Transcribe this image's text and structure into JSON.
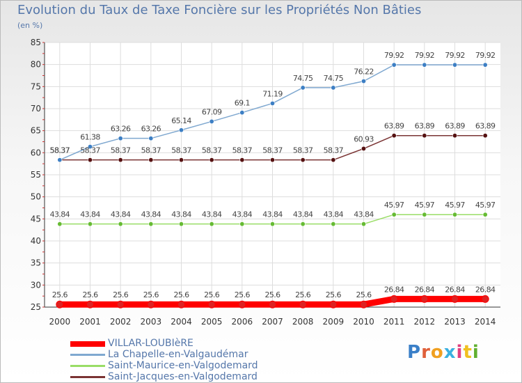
{
  "title": "Evolution du Taux de Taxe Foncière sur les Propriétés Non Bâties",
  "subtitle": "(en %)",
  "logo_text": "Proxiti",
  "chart_data": {
    "type": "line",
    "title": "Evolution du Taux de Taxe Foncière sur les Propriétés Non Bâties",
    "ylabel": "(en %)",
    "xlabel": "",
    "ylim": [
      25,
      85
    ],
    "yticks": [
      25,
      30,
      35,
      40,
      45,
      50,
      55,
      60,
      65,
      70,
      75,
      80,
      85
    ],
    "grid": true,
    "legend_position": "bottom-left",
    "x": [
      "2000",
      "2001",
      "2002",
      "2003",
      "2004",
      "2005",
      "2006",
      "2007",
      "2008",
      "2009",
      "2010",
      "2011",
      "2012",
      "2013",
      "2014"
    ],
    "series": [
      {
        "name": "VILLAR-LOUBIèRE",
        "color": "#ff0000",
        "marker": "#dd2222",
        "values": [
          25.6,
          25.6,
          25.6,
          25.6,
          25.6,
          25.6,
          25.6,
          25.6,
          25.6,
          25.6,
          25.6,
          26.84,
          26.84,
          26.84,
          26.84
        ]
      },
      {
        "name": "La Chapelle-en-Valgaudémar",
        "color": "#7fa8d0",
        "marker": "#3d7fc4",
        "values": [
          58.37,
          61.38,
          63.26,
          63.26,
          65.14,
          67.09,
          69.1,
          71.19,
          74.75,
          74.75,
          76.22,
          79.92,
          79.92,
          79.92,
          79.92
        ]
      },
      {
        "name": "Saint-Maurice-en-Valgodemard",
        "color": "#99dd66",
        "marker": "#66bb33",
        "values": [
          43.84,
          43.84,
          43.84,
          43.84,
          43.84,
          43.84,
          43.84,
          43.84,
          43.84,
          43.84,
          43.84,
          45.97,
          45.97,
          45.97,
          45.97
        ]
      },
      {
        "name": "Saint-Jacques-en-Valgodemard",
        "color": "#7a3333",
        "marker": "#551111",
        "values": [
          58.37,
          58.37,
          58.37,
          58.37,
          58.37,
          58.37,
          58.37,
          58.37,
          58.37,
          58.37,
          60.93,
          63.89,
          63.89,
          63.89,
          63.89
        ]
      }
    ],
    "point_labels": [
      [
        "25.6",
        "25.6",
        "25.6",
        "25.6",
        "25.6",
        "25.6",
        "25.6",
        "25.6",
        "25.6",
        "25.6",
        "25.6",
        "26.84",
        "26.84",
        "26.84",
        "26.84"
      ],
      [
        "58.37",
        "61.38",
        "63.26",
        "63.26",
        "65.14",
        "67.09",
        "69.1",
        "71.19",
        "74.75",
        "74.75",
        "76.22",
        "79.92",
        "79.92",
        "79.92",
        "79.92"
      ],
      [
        "43.84",
        "43.84",
        "43.84",
        "43.84",
        "43.84",
        "43.84",
        "43.84",
        "43.84",
        "43.84",
        "43.84",
        "43.84",
        "45.97",
        "45.97",
        "45.97",
        "45.97"
      ],
      [
        "58.37",
        "58.37",
        "58.37",
        "58.37",
        "58.37",
        "58.37",
        "58.37",
        "58.37",
        "58.37",
        "58.37",
        "60.93",
        "63.89",
        "63.89",
        "63.89",
        "63.89"
      ]
    ]
  }
}
